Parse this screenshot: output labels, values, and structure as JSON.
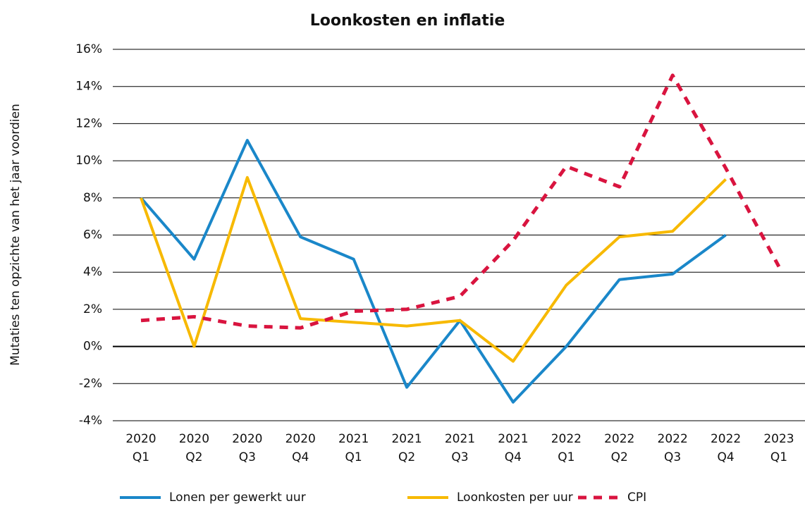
{
  "chart_data": {
    "type": "line",
    "title": "Loonkosten en inflatie",
    "ylabel": "Mutaties ten opzichte van het jaar voordien",
    "categories": [
      "2020 Q1",
      "2020 Q2",
      "2020 Q3",
      "2020 Q4",
      "2021 Q1",
      "2021 Q2",
      "2021 Q3",
      "2021 Q4",
      "2022 Q1",
      "2022 Q2",
      "2022 Q3",
      "2022 Q4",
      "2023 Q1"
    ],
    "series": [
      {
        "name": "Lonen per gewerkt uur",
        "color": "#1a87c9",
        "dashed": false,
        "values": [
          8.0,
          4.7,
          11.1,
          5.9,
          4.7,
          -2.2,
          1.4,
          -3.0,
          0.0,
          3.6,
          3.9,
          6.0,
          null
        ]
      },
      {
        "name": "Loonkosten per uur",
        "color": "#f7b900",
        "dashed": false,
        "values": [
          8.0,
          0.0,
          9.1,
          1.5,
          1.3,
          1.1,
          1.4,
          -0.8,
          3.3,
          5.9,
          6.2,
          9.0,
          null
        ]
      },
      {
        "name": "CPI",
        "color": "#d9143f",
        "dashed": true,
        "values": [
          1.4,
          1.6,
          1.1,
          1.0,
          1.9,
          2.0,
          2.7,
          5.7,
          9.7,
          8.6,
          14.6,
          9.6,
          4.3
        ]
      }
    ],
    "ylim": [
      -4,
      16
    ],
    "yticks": [
      {
        "value": -4,
        "label": "-4%"
      },
      {
        "value": -2,
        "label": "-2%"
      },
      {
        "value": 0,
        "label": "0%"
      },
      {
        "value": 2,
        "label": "2%"
      },
      {
        "value": 4,
        "label": "4%"
      },
      {
        "value": 6,
        "label": "6%"
      },
      {
        "value": 8,
        "label": "8%"
      },
      {
        "value": 10,
        "label": "10%"
      },
      {
        "value": 12,
        "label": "12%"
      },
      {
        "value": 14,
        "label": "14%"
      },
      {
        "value": 16,
        "label": "16%"
      }
    ],
    "grid": true,
    "legend": "bottom"
  }
}
